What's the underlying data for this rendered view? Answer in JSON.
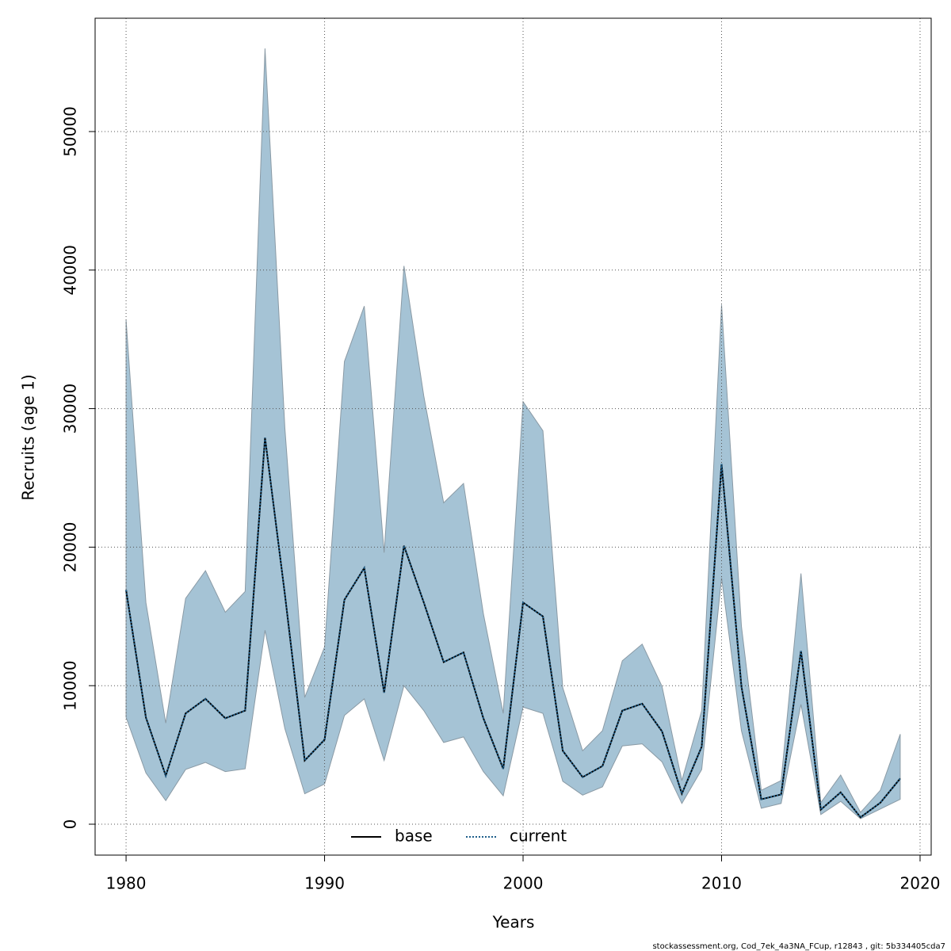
{
  "chart_data": {
    "type": "line",
    "x_label": "Years",
    "y_label": "Recruits (age 1)",
    "footnote": "stockassessment.org, Cod_7ek_4a3NA_FCup, r12843 , git: 5b334405cda7",
    "x": [
      1980,
      1981,
      1982,
      1983,
      1984,
      1985,
      1986,
      1987,
      1988,
      1989,
      1990,
      1991,
      1992,
      1993,
      1994,
      1995,
      1996,
      1997,
      1998,
      1999,
      2000,
      2001,
      2002,
      2003,
      2004,
      2005,
      2006,
      2007,
      2008,
      2009,
      2010,
      2011,
      2012,
      2013,
      2014,
      2015,
      2016,
      2017,
      2018,
      2019
    ],
    "series": [
      {
        "name": "base",
        "color": "#000000",
        "dash": "solid",
        "values": [
          16900,
          7700,
          3500,
          8000,
          9050,
          7650,
          8200,
          27900,
          16600,
          4600,
          6100,
          16200,
          18500,
          9500,
          20100,
          16000,
          11700,
          12400,
          7650,
          4000,
          16000,
          15000,
          5300,
          3400,
          4200,
          8200,
          8700,
          6700,
          2200,
          5600,
          26000,
          9950,
          1800,
          2150,
          12500,
          1050,
          2300,
          500,
          1550,
          3300
        ]
      },
      {
        "name": "current",
        "color": "#1f5f8b",
        "dash": "dotted",
        "values": [
          16900,
          7700,
          3500,
          8000,
          9050,
          7650,
          8200,
          27900,
          16600,
          4600,
          6100,
          16200,
          18500,
          9500,
          20100,
          16000,
          11700,
          12400,
          7650,
          4000,
          16000,
          15000,
          5300,
          3400,
          4200,
          8200,
          8700,
          6700,
          2200,
          5600,
          26000,
          9950,
          1800,
          2150,
          12500,
          1050,
          2300,
          500,
          1550,
          3300
        ]
      }
    ],
    "interval": {
      "color": "#a5c3d5",
      "upper": [
        36400,
        16000,
        7300,
        16300,
        18300,
        15300,
        16800,
        56000,
        28600,
        9150,
        12800,
        33400,
        37400,
        19600,
        40300,
        30900,
        23200,
        24600,
        15200,
        8000,
        30500,
        28400,
        9850,
        5300,
        6750,
        11800,
        13000,
        9950,
        3150,
        8200,
        37500,
        14300,
        2450,
        3150,
        18100,
        1550,
        3550,
        850,
        2450,
        6500
      ],
      "lower": [
        7720,
        3700,
        1700,
        3950,
        4460,
        3800,
        4000,
        14000,
        6900,
        2200,
        2900,
        7850,
        9050,
        4600,
        10000,
        8200,
        5900,
        6300,
        3800,
        2050,
        8450,
        8000,
        3100,
        2100,
        2700,
        5650,
        5800,
        4500,
        1500,
        3950,
        17800,
        6750,
        1150,
        1500,
        8650,
        700,
        1650,
        400,
        1100,
        1800
      ]
    },
    "xlim": [
      1978.44,
      2020.56
    ],
    "ylim": [
      -2231,
      58180
    ],
    "xticks": [
      1980,
      1990,
      2000,
      2010,
      2020
    ],
    "yticks": [
      0,
      10000,
      20000,
      30000,
      40000,
      50000
    ],
    "grid": true,
    "legend": "bottom"
  }
}
